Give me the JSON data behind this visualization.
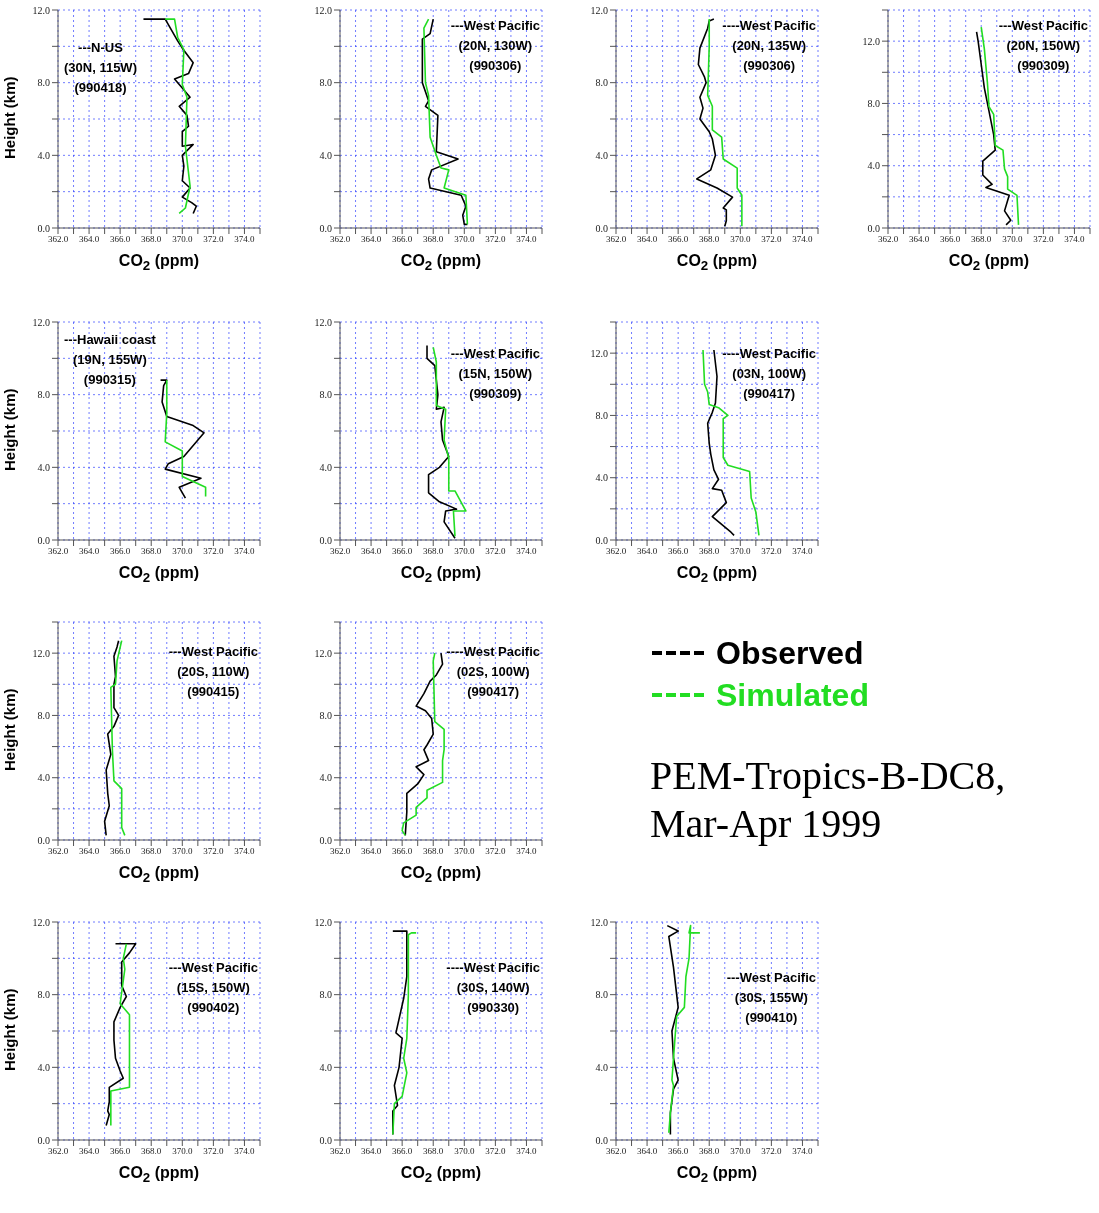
{
  "chart_data": [
    {
      "type": "line",
      "xlabel": "CO$_{2}$ (ppm)",
      "ylabel": "Height (km)",
      "annotations": [
        "---N-US",
        "(30N, 115W)",
        "(990418)"
      ],
      "xlim": [
        362,
        375
      ],
      "xticks": [
        {
          "value": 362,
          "label": "362.0"
        },
        {
          "value": 363,
          "label": null
        },
        {
          "value": 364,
          "label": "364.0"
        },
        {
          "value": 365,
          "label": null
        },
        {
          "value": 366,
          "label": "366.0"
        },
        {
          "value": 367,
          "label": null
        },
        {
          "value": 368,
          "label": "368.0"
        },
        {
          "value": 369,
          "label": null
        },
        {
          "value": 370,
          "label": "370.0"
        },
        {
          "value": 371,
          "label": null
        },
        {
          "value": 372,
          "label": "372.0"
        },
        {
          "value": 373,
          "label": null
        },
        {
          "value": 374,
          "label": "374.0"
        },
        {
          "value": 375,
          "label": null
        }
      ],
      "ylim": [
        0,
        12
      ],
      "yticks": [
        {
          "value": 0,
          "label": "0.0"
        },
        {
          "value": 2,
          "label": null
        },
        {
          "value": 4,
          "label": "4.0"
        },
        {
          "value": 6,
          "label": null
        },
        {
          "value": 8,
          "label": "8.0"
        },
        {
          "value": 10,
          "label": null
        },
        {
          "value": 12,
          "label": "12.0"
        }
      ],
      "grid": true,
      "series": [
        {
          "color": "#000000",
          "x": [
            367.5,
            368.9,
            369.7,
            370.0,
            370.7,
            370.4,
            369.5,
            369.9,
            370.5,
            369.8,
            370.3,
            370.4,
            370.0,
            370.0,
            370.7,
            370.0,
            370.1,
            370.0,
            370.5,
            370.0,
            370.6,
            370.9,
            370.7
          ],
          "values": [
            11.5,
            11.5,
            10.3,
            9.9,
            9.1,
            8.5,
            8.2,
            7.8,
            7.2,
            6.7,
            6.2,
            5.6,
            5.3,
            4.5,
            4.6,
            4.0,
            3.4,
            2.6,
            2.2,
            1.7,
            1.4,
            1.2,
            0.8
          ]
        },
        {
          "color": "#22dd22",
          "x": [
            368.9,
            369.5,
            369.7,
            370.1,
            370.0,
            370.3,
            370.2,
            370.5,
            370.2,
            369.8
          ],
          "values": [
            11.5,
            11.5,
            10.5,
            9.8,
            7.9,
            7.2,
            4.5,
            2.3,
            1.1,
            0.8
          ]
        }
      ]
    },
    {
      "type": "line",
      "xlabel": "CO$_{2}$ (ppm)",
      "annotations": [
        "---West Pacific",
        "(20N, 130W)",
        "(990306)"
      ],
      "xlim": [
        362,
        375
      ],
      "xticks": [
        {
          "value": 362,
          "label": "362.0"
        },
        {
          "value": 363,
          "label": null
        },
        {
          "value": 364,
          "label": "364.0"
        },
        {
          "value": 365,
          "label": null
        },
        {
          "value": 366,
          "label": "366.0"
        },
        {
          "value": 367,
          "label": null
        },
        {
          "value": 368,
          "label": "368.0"
        },
        {
          "value": 369,
          "label": null
        },
        {
          "value": 370,
          "label": "370.0"
        },
        {
          "value": 371,
          "label": null
        },
        {
          "value": 372,
          "label": "372.0"
        },
        {
          "value": 373,
          "label": null
        },
        {
          "value": 374,
          "label": "374.0"
        },
        {
          "value": 375,
          "label": null
        }
      ],
      "ylim": [
        0,
        12
      ],
      "yticks": [
        {
          "value": 0,
          "label": "0.0"
        },
        {
          "value": 2,
          "label": null
        },
        {
          "value": 4,
          "label": "4.0"
        },
        {
          "value": 6,
          "label": null
        },
        {
          "value": 8,
          "label": "8.0"
        },
        {
          "value": 10,
          "label": null
        },
        {
          "value": 12,
          "label": "12.0"
        }
      ],
      "grid": true,
      "series": [
        {
          "color": "#000000",
          "x": [
            368.0,
            367.8,
            367.3,
            367.3,
            367.7,
            367.5,
            368.3,
            368.2,
            369.6,
            367.9,
            367.7,
            367.8,
            369.8,
            370.1,
            369.9,
            370.0,
            370.2
          ],
          "values": [
            11.5,
            10.7,
            10.4,
            8.0,
            7.0,
            6.7,
            6.2,
            4.2,
            3.8,
            3.2,
            2.7,
            2.2,
            1.8,
            1.2,
            0.7,
            0.2,
            0.2
          ]
        },
        {
          "color": "#22dd22",
          "x": [
            367.7,
            367.4,
            367.5,
            367.7,
            367.8,
            368.2,
            368.5,
            369.0,
            368.7,
            370.1,
            370.2
          ],
          "values": [
            11.5,
            11.0,
            8.0,
            7.3,
            5.0,
            4.0,
            3.3,
            3.2,
            2.2,
            1.8,
            0.2
          ]
        }
      ]
    },
    {
      "type": "line",
      "xlabel": "CO$_{2}$ (ppm)",
      "annotations": [
        "----West Pacific",
        "(20N, 135W)",
        "(990306)"
      ],
      "xlim": [
        362,
        375
      ],
      "xticks": [
        {
          "value": 362,
          "label": "362.0"
        },
        {
          "value": 363,
          "label": null
        },
        {
          "value": 364,
          "label": "364.0"
        },
        {
          "value": 365,
          "label": null
        },
        {
          "value": 366,
          "label": "366.0"
        },
        {
          "value": 367,
          "label": null
        },
        {
          "value": 368,
          "label": "368.0"
        },
        {
          "value": 369,
          "label": null
        },
        {
          "value": 370,
          "label": "370.0"
        },
        {
          "value": 371,
          "label": null
        },
        {
          "value": 372,
          "label": "372.0"
        },
        {
          "value": 373,
          "label": null
        },
        {
          "value": 374,
          "label": "374.0"
        },
        {
          "value": 375,
          "label": null
        }
      ],
      "ylim": [
        0,
        12
      ],
      "yticks": [
        {
          "value": 0,
          "label": "0.0"
        },
        {
          "value": 2,
          "label": null
        },
        {
          "value": 4,
          "label": "4.0"
        },
        {
          "value": 6,
          "label": null
        },
        {
          "value": 8,
          "label": "8.0"
        },
        {
          "value": 10,
          "label": null
        },
        {
          "value": 12,
          "label": "12.0"
        }
      ],
      "grid": true,
      "series": [
        {
          "color": "#000000",
          "x": [
            368.3,
            368.0,
            367.9,
            367.4,
            367.3,
            367.7,
            367.8,
            367.4,
            367.6,
            367.4,
            368.0,
            368.2,
            368.4,
            368.1,
            367.2,
            368.5,
            369.5,
            368.9,
            369.1,
            369.1,
            369.0
          ],
          "values": [
            11.5,
            11.4,
            11.0,
            9.9,
            9.0,
            8.3,
            8.0,
            7.2,
            6.6,
            6.0,
            5.3,
            4.9,
            4.0,
            3.2,
            2.7,
            2.2,
            1.7,
            1.1,
            1.0,
            0.4,
            0.1
          ]
        },
        {
          "color": "#22dd22",
          "x": [
            368.0,
            368.0,
            367.9,
            368.2,
            368.2,
            368.8,
            368.9,
            369.8,
            369.8,
            370.1,
            370.1
          ],
          "values": [
            11.5,
            10.0,
            7.3,
            6.7,
            5.4,
            5.0,
            3.8,
            3.3,
            2.2,
            1.8,
            0.1
          ]
        }
      ]
    },
    {
      "type": "line",
      "xlabel": "CO$_{2}$ (ppm)",
      "annotations": [
        "---West Pacific",
        "(20N, 150W)",
        "(990309)"
      ],
      "xlim": [
        362,
        375
      ],
      "xticks": [
        {
          "value": 362,
          "label": "362.0"
        },
        {
          "value": 363,
          "label": null
        },
        {
          "value": 364,
          "label": "364.0"
        },
        {
          "value": 365,
          "label": null
        },
        {
          "value": 366,
          "label": "366.0"
        },
        {
          "value": 367,
          "label": null
        },
        {
          "value": 368,
          "label": "368.0"
        },
        {
          "value": 369,
          "label": null
        },
        {
          "value": 370,
          "label": "370.0"
        },
        {
          "value": 371,
          "label": null
        },
        {
          "value": 372,
          "label": "372.0"
        },
        {
          "value": 373,
          "label": null
        },
        {
          "value": 374,
          "label": "374.0"
        },
        {
          "value": 375,
          "label": null
        }
      ],
      "ylim": [
        0,
        14
      ],
      "yticks": [
        {
          "value": 0,
          "label": "0.0"
        },
        {
          "value": 2,
          "label": null
        },
        {
          "value": 4,
          "label": "4.0"
        },
        {
          "value": 6,
          "label": null
        },
        {
          "value": 8,
          "label": "8.0"
        },
        {
          "value": 10,
          "label": null
        },
        {
          "value": 12,
          "label": "12.0"
        },
        {
          "value": 14,
          "label": null
        }
      ],
      "grid": true,
      "series": [
        {
          "color": "#000000",
          "x": [
            367.7,
            367.8,
            368.0,
            368.2,
            368.5,
            368.8,
            368.9,
            368.1,
            368.1,
            368.7,
            368.3,
            369.8,
            369.5,
            369.9,
            369.6
          ],
          "values": [
            12.6,
            12.0,
            10.5,
            9.0,
            7.5,
            6.0,
            5.0,
            4.3,
            3.4,
            2.8,
            2.6,
            2.1,
            1.1,
            0.5,
            0.2
          ]
        },
        {
          "color": "#22dd22",
          "x": [
            368.0,
            368.2,
            368.4,
            368.5,
            368.8,
            368.9,
            369.4,
            369.5,
            369.7,
            369.7,
            370.3,
            370.4
          ],
          "values": [
            12.9,
            11.5,
            9.3,
            7.8,
            7.3,
            5.3,
            5.0,
            3.8,
            3.3,
            2.5,
            2.1,
            0.2
          ]
        }
      ]
    },
    {
      "type": "line",
      "xlabel": "CO$_{2}$ (ppm)",
      "ylabel": "Height (km)",
      "annotations": [
        "---Hawaii coast",
        "(19N, 155W)",
        "(990315)"
      ],
      "xlim": [
        362,
        375
      ],
      "xticks": [
        {
          "value": 362,
          "label": "362.0"
        },
        {
          "value": 363,
          "label": null
        },
        {
          "value": 364,
          "label": "364.0"
        },
        {
          "value": 365,
          "label": null
        },
        {
          "value": 366,
          "label": "366.0"
        },
        {
          "value": 367,
          "label": null
        },
        {
          "value": 368,
          "label": "368.0"
        },
        {
          "value": 369,
          "label": null
        },
        {
          "value": 370,
          "label": "370.0"
        },
        {
          "value": 371,
          "label": null
        },
        {
          "value": 372,
          "label": "372.0"
        },
        {
          "value": 373,
          "label": null
        },
        {
          "value": 374,
          "label": "374.0"
        },
        {
          "value": 375,
          "label": null
        }
      ],
      "ylim": [
        0,
        12
      ],
      "yticks": [
        {
          "value": 0,
          "label": "0.0"
        },
        {
          "value": 2,
          "label": null
        },
        {
          "value": 4,
          "label": "4.0"
        },
        {
          "value": 6,
          "label": null
        },
        {
          "value": 8,
          "label": "8.0"
        },
        {
          "value": 10,
          "label": null
        },
        {
          "value": 12,
          "label": "12.0"
        }
      ],
      "grid": true,
      "series": [
        {
          "color": "#000000",
          "x": [
            368.6,
            369.0,
            368.8,
            368.7,
            369.0,
            370.7,
            371.4,
            370.1,
            369.1,
            368.9,
            371.2,
            369.8,
            370.2
          ],
          "values": [
            8.8,
            8.8,
            8.5,
            7.6,
            6.8,
            6.3,
            5.9,
            4.6,
            4.2,
            3.9,
            3.4,
            2.9,
            2.3
          ]
        },
        {
          "color": "#22dd22",
          "x": [
            369.0,
            369.0,
            368.9,
            370.0,
            370.0,
            371.5,
            371.5
          ],
          "values": [
            8.8,
            7.0,
            5.4,
            4.9,
            3.5,
            2.9,
            2.4
          ]
        }
      ]
    },
    {
      "type": "line",
      "xlabel": "CO$_{2}$ (ppm)",
      "annotations": [
        "---West Pacific",
        "(15N, 150W)",
        "(990309)"
      ],
      "xlim": [
        362,
        375
      ],
      "xticks": [
        {
          "value": 362,
          "label": "362.0"
        },
        {
          "value": 363,
          "label": null
        },
        {
          "value": 364,
          "label": "364.0"
        },
        {
          "value": 365,
          "label": null
        },
        {
          "value": 366,
          "label": "366.0"
        },
        {
          "value": 367,
          "label": null
        },
        {
          "value": 368,
          "label": "368.0"
        },
        {
          "value": 369,
          "label": null
        },
        {
          "value": 370,
          "label": "370.0"
        },
        {
          "value": 371,
          "label": null
        },
        {
          "value": 372,
          "label": "372.0"
        },
        {
          "value": 373,
          "label": null
        },
        {
          "value": 374,
          "label": "374.0"
        },
        {
          "value": 375,
          "label": null
        }
      ],
      "ylim": [
        0,
        12
      ],
      "yticks": [
        {
          "value": 0,
          "label": "0.0"
        },
        {
          "value": 2,
          "label": null
        },
        {
          "value": 4,
          "label": "4.0"
        },
        {
          "value": 6,
          "label": null
        },
        {
          "value": 8,
          "label": "8.0"
        },
        {
          "value": 10,
          "label": null
        },
        {
          "value": 12,
          "label": "12.0"
        }
      ],
      "grid": true,
      "series": [
        {
          "color": "#000000",
          "x": [
            367.6,
            367.6,
            368.1,
            368.3,
            368.2,
            368.7,
            368.5,
            368.6,
            369.0,
            368.4,
            367.7,
            367.7,
            368.4,
            369.5,
            368.8,
            368.7,
            369.4
          ],
          "values": [
            10.7,
            10.0,
            9.6,
            8.0,
            7.2,
            7.3,
            6.5,
            5.5,
            4.6,
            4.0,
            3.6,
            2.6,
            2.1,
            1.7,
            1.6,
            1.0,
            0.1
          ]
        },
        {
          "color": "#22dd22",
          "x": [
            368.0,
            368.2,
            368.2,
            368.8,
            368.7,
            369.0,
            369.0,
            369.4,
            370.1,
            369.3,
            369.4
          ],
          "values": [
            10.6,
            9.8,
            7.4,
            7.2,
            5.5,
            4.5,
            2.7,
            2.7,
            1.6,
            1.6,
            0.2
          ]
        }
      ]
    },
    {
      "type": "line",
      "xlabel": "CO$_{2}$ (ppm)",
      "annotations": [
        "----West Pacific",
        "(03N, 100W)",
        "(990417)"
      ],
      "xlim": [
        362,
        375
      ],
      "xticks": [
        {
          "value": 362,
          "label": "362.0"
        },
        {
          "value": 363,
          "label": null
        },
        {
          "value": 364,
          "label": "364.0"
        },
        {
          "value": 365,
          "label": null
        },
        {
          "value": 366,
          "label": "366.0"
        },
        {
          "value": 367,
          "label": null
        },
        {
          "value": 368,
          "label": "368.0"
        },
        {
          "value": 369,
          "label": null
        },
        {
          "value": 370,
          "label": "370.0"
        },
        {
          "value": 371,
          "label": null
        },
        {
          "value": 372,
          "label": "372.0"
        },
        {
          "value": 373,
          "label": null
        },
        {
          "value": 374,
          "label": "374.0"
        },
        {
          "value": 375,
          "label": null
        }
      ],
      "ylim": [
        0,
        14
      ],
      "yticks": [
        {
          "value": 0,
          "label": "0.0"
        },
        {
          "value": 2,
          "label": null
        },
        {
          "value": 4,
          "label": "4.0"
        },
        {
          "value": 6,
          "label": null
        },
        {
          "value": 8,
          "label": "8.0"
        },
        {
          "value": 10,
          "label": null
        },
        {
          "value": 12,
          "label": "12.0"
        },
        {
          "value": 14,
          "label": null
        }
      ],
      "grid": true,
      "series": [
        {
          "color": "#000000",
          "x": [
            368.3,
            368.5,
            368.4,
            368.2,
            367.9,
            368.0,
            368.1,
            368.3,
            368.6,
            368.2,
            368.8,
            369.1,
            368.2,
            369.4,
            369.6
          ],
          "values": [
            12.2,
            10.5,
            8.8,
            8.2,
            7.5,
            6.2,
            5.5,
            4.5,
            3.9,
            3.3,
            3.2,
            2.4,
            1.5,
            0.5,
            0.3
          ]
        },
        {
          "color": "#22dd22",
          "x": [
            367.6,
            367.7,
            367.9,
            368.0,
            368.6,
            369.2,
            368.9,
            368.9,
            369.2,
            370.6,
            370.7,
            371.0,
            371.2
          ],
          "values": [
            12.2,
            10.0,
            9.5,
            8.7,
            8.5,
            8.0,
            7.8,
            5.3,
            4.8,
            4.4,
            2.7,
            1.8,
            0.3
          ]
        }
      ]
    },
    {
      "type": "line",
      "xlabel": "CO$_{2}$ (ppm)",
      "ylabel": "Height (km)",
      "annotations": [
        "---West Pacific",
        "(20S, 110W)",
        "(990415)"
      ],
      "xlim": [
        362,
        375
      ],
      "xticks": [
        {
          "value": 362,
          "label": "362.0"
        },
        {
          "value": 363,
          "label": null
        },
        {
          "value": 364,
          "label": "364.0"
        },
        {
          "value": 365,
          "label": null
        },
        {
          "value": 366,
          "label": "366.0"
        },
        {
          "value": 367,
          "label": null
        },
        {
          "value": 368,
          "label": "368.0"
        },
        {
          "value": 369,
          "label": null
        },
        {
          "value": 370,
          "label": "370.0"
        },
        {
          "value": 371,
          "label": null
        },
        {
          "value": 372,
          "label": "372.0"
        },
        {
          "value": 373,
          "label": null
        },
        {
          "value": 374,
          "label": "374.0"
        },
        {
          "value": 375,
          "label": null
        }
      ],
      "ylim": [
        0,
        14
      ],
      "yticks": [
        {
          "value": 0,
          "label": "0.0"
        },
        {
          "value": 2,
          "label": null
        },
        {
          "value": 4,
          "label": "4.0"
        },
        {
          "value": 6,
          "label": null
        },
        {
          "value": 8,
          "label": "8.0"
        },
        {
          "value": 10,
          "label": null
        },
        {
          "value": 12,
          "label": "12.0"
        },
        {
          "value": 14,
          "label": null
        }
      ],
      "grid": true,
      "series": [
        {
          "color": "#000000",
          "x": [
            365.9,
            365.8,
            365.6,
            365.7,
            365.6,
            365.6,
            365.9,
            365.6,
            365.2,
            365.4,
            365.1,
            365.2,
            365.3,
            365.0,
            365.1
          ],
          "values": [
            12.8,
            12.4,
            11.8,
            10.5,
            10.0,
            8.5,
            8.0,
            7.3,
            6.8,
            5.5,
            4.5,
            3.0,
            2.2,
            1.2,
            0.3
          ]
        },
        {
          "color": "#22dd22",
          "x": [
            366.1,
            365.8,
            365.7,
            365.4,
            365.5,
            365.6,
            366.1,
            366.1,
            366.3
          ],
          "values": [
            12.8,
            11.5,
            10.0,
            9.8,
            5.8,
            3.8,
            3.3,
            0.8,
            0.3
          ]
        }
      ]
    },
    {
      "type": "line",
      "xlabel": "CO$_{2}$ (ppm)",
      "annotations": [
        "----West Pacific",
        "(02S, 100W)",
        "(990417)"
      ],
      "xlim": [
        362,
        375
      ],
      "xticks": [
        {
          "value": 362,
          "label": "362.0"
        },
        {
          "value": 363,
          "label": null
        },
        {
          "value": 364,
          "label": "364.0"
        },
        {
          "value": 365,
          "label": null
        },
        {
          "value": 366,
          "label": "366.0"
        },
        {
          "value": 367,
          "label": null
        },
        {
          "value": 368,
          "label": "368.0"
        },
        {
          "value": 369,
          "label": null
        },
        {
          "value": 370,
          "label": "370.0"
        },
        {
          "value": 371,
          "label": null
        },
        {
          "value": 372,
          "label": "372.0"
        },
        {
          "value": 373,
          "label": null
        },
        {
          "value": 374,
          "label": "374.0"
        },
        {
          "value": 375,
          "label": null
        }
      ],
      "ylim": [
        0,
        14
      ],
      "yticks": [
        {
          "value": 0,
          "label": "0.0"
        },
        {
          "value": 2,
          "label": null
        },
        {
          "value": 4,
          "label": "4.0"
        },
        {
          "value": 6,
          "label": null
        },
        {
          "value": 8,
          "label": "8.0"
        },
        {
          "value": 10,
          "label": null
        },
        {
          "value": 12,
          "label": "12.0"
        },
        {
          "value": 14,
          "label": null
        }
      ],
      "grid": true,
      "legend": "right",
      "series": [
        {
          "name": "Observed",
          "color": "#000000",
          "x": [
            368.5,
            368.6,
            368.2,
            367.8,
            367.4,
            366.9,
            367.5,
            367.9,
            368.0,
            367.6,
            367.4,
            367.7,
            366.9,
            367.4,
            367.0,
            366.3,
            366.3,
            366.2
          ],
          "values": [
            12.0,
            11.3,
            10.6,
            10.2,
            9.4,
            8.6,
            8.3,
            7.8,
            6.8,
            6.1,
            5.8,
            5.1,
            4.7,
            4.2,
            3.6,
            3.0,
            1.8,
            0.3
          ]
        },
        {
          "name": "Simulated",
          "color": "#22dd22",
          "x": [
            368.1,
            368.0,
            368.1,
            368.7,
            368.7,
            368.6,
            368.6,
            367.6,
            367.6,
            366.9,
            366.9,
            366.1,
            366.0,
            366.2
          ],
          "values": [
            12.0,
            11.5,
            7.6,
            7.1,
            5.8,
            5.1,
            3.7,
            3.2,
            2.7,
            2.1,
            1.6,
            1.1,
            0.6,
            0.3
          ]
        }
      ]
    },
    {
      "type": "line",
      "xlabel": "CO$_{2}$ (ppm)",
      "ylabel": "Height (km)",
      "annotations": [
        "---West Pacific",
        "(15S, 150W)",
        "(990402)"
      ],
      "xlim": [
        362,
        375
      ],
      "xticks": [
        {
          "value": 362,
          "label": "362.0"
        },
        {
          "value": 363,
          "label": null
        },
        {
          "value": 364,
          "label": "364.0"
        },
        {
          "value": 365,
          "label": null
        },
        {
          "value": 366,
          "label": "366.0"
        },
        {
          "value": 367,
          "label": null
        },
        {
          "value": 368,
          "label": "368.0"
        },
        {
          "value": 369,
          "label": null
        },
        {
          "value": 370,
          "label": "370.0"
        },
        {
          "value": 371,
          "label": null
        },
        {
          "value": 372,
          "label": "372.0"
        },
        {
          "value": 373,
          "label": null
        },
        {
          "value": 374,
          "label": "374.0"
        },
        {
          "value": 375,
          "label": null
        }
      ],
      "ylim": [
        0,
        12
      ],
      "yticks": [
        {
          "value": 0,
          "label": "0.0"
        },
        {
          "value": 2,
          "label": null
        },
        {
          "value": 4,
          "label": "4.0"
        },
        {
          "value": 6,
          "label": null
        },
        {
          "value": 8,
          "label": "8.0"
        },
        {
          "value": 10,
          "label": null
        },
        {
          "value": 12,
          "label": "12.0"
        }
      ],
      "grid": true,
      "series": [
        {
          "color": "#000000",
          "x": [
            365.7,
            367.0,
            366.6,
            366.1,
            366.1,
            366.4,
            366.0,
            365.6,
            365.6,
            365.7,
            366.0,
            366.2,
            365.3,
            365.3,
            365.2,
            365.3,
            365.1
          ],
          "values": [
            10.8,
            10.8,
            10.3,
            9.8,
            8.5,
            7.9,
            7.3,
            6.5,
            5.5,
            4.5,
            3.8,
            3.4,
            2.9,
            2.1,
            1.6,
            1.4,
            0.8
          ]
        },
        {
          "color": "#22dd22",
          "x": [
            366.4,
            366.2,
            366.3,
            366.0,
            366.6,
            366.6,
            365.4,
            365.4
          ],
          "values": [
            10.8,
            10.0,
            9.4,
            7.5,
            6.9,
            2.9,
            2.7,
            0.8
          ]
        }
      ]
    },
    {
      "type": "line",
      "xlabel": "CO$_{2}$ (ppm)",
      "annotations": [
        "----West Pacific",
        "(30S, 140W)",
        "(990330)"
      ],
      "xlim": [
        362,
        375
      ],
      "xticks": [
        {
          "value": 362,
          "label": "362.0"
        },
        {
          "value": 363,
          "label": null
        },
        {
          "value": 364,
          "label": "364.0"
        },
        {
          "value": 365,
          "label": null
        },
        {
          "value": 366,
          "label": "366.0"
        },
        {
          "value": 367,
          "label": null
        },
        {
          "value": 368,
          "label": "368.0"
        },
        {
          "value": 369,
          "label": null
        },
        {
          "value": 370,
          "label": "370.0"
        },
        {
          "value": 371,
          "label": null
        },
        {
          "value": 372,
          "label": "372.0"
        },
        {
          "value": 373,
          "label": null
        },
        {
          "value": 374,
          "label": "374.0"
        },
        {
          "value": 375,
          "label": null
        }
      ],
      "ylim": [
        0,
        12
      ],
      "yticks": [
        {
          "value": 0,
          "label": "0.0"
        },
        {
          "value": 2,
          "label": null
        },
        {
          "value": 4,
          "label": "4.0"
        },
        {
          "value": 6,
          "label": null
        },
        {
          "value": 8,
          "label": "8.0"
        },
        {
          "value": 10,
          "label": null
        },
        {
          "value": 12,
          "label": "12.0"
        }
      ],
      "grid": true,
      "series": [
        {
          "color": "#000000",
          "x": [
            365.4,
            366.3,
            366.3,
            366.1,
            365.6,
            366.0,
            365.8,
            365.5,
            365.7,
            365.4,
            365.4
          ],
          "values": [
            11.5,
            11.5,
            9.0,
            7.8,
            5.9,
            5.6,
            4.0,
            3.0,
            1.9,
            1.6,
            0.3
          ]
        },
        {
          "color": "#22dd22",
          "x": [
            366.9,
            366.6,
            366.4,
            366.4,
            366.3,
            366.1,
            366.3,
            366.0,
            365.5,
            365.4
          ],
          "values": [
            11.4,
            11.4,
            11.3,
            8.0,
            5.6,
            4.5,
            3.7,
            2.4,
            2.0,
            0.3
          ]
        }
      ]
    },
    {
      "type": "line",
      "xlabel": "CO$_{2}$ (ppm)",
      "annotations": [
        "---West Pacific",
        "(30S, 155W)",
        "(990410)"
      ],
      "xlim": [
        362,
        375
      ],
      "xticks": [
        {
          "value": 362,
          "label": "362.0"
        },
        {
          "value": 363,
          "label": null
        },
        {
          "value": 364,
          "label": "364.0"
        },
        {
          "value": 365,
          "label": null
        },
        {
          "value": 366,
          "label": "366.0"
        },
        {
          "value": 367,
          "label": null
        },
        {
          "value": 368,
          "label": "368.0"
        },
        {
          "value": 369,
          "label": null
        },
        {
          "value": 370,
          "label": "370.0"
        },
        {
          "value": 371,
          "label": null
        },
        {
          "value": 372,
          "label": "372.0"
        },
        {
          "value": 373,
          "label": null
        },
        {
          "value": 374,
          "label": "374.0"
        },
        {
          "value": 375,
          "label": null
        }
      ],
      "ylim": [
        0,
        12
      ],
      "yticks": [
        {
          "value": 0,
          "label": "0.0"
        },
        {
          "value": 2,
          "label": null
        },
        {
          "value": 4,
          "label": "4.0"
        },
        {
          "value": 6,
          "label": null
        },
        {
          "value": 8,
          "label": "8.0"
        },
        {
          "value": 10,
          "label": null
        },
        {
          "value": 12,
          "label": "12.0"
        }
      ],
      "grid": true,
      "series": [
        {
          "color": "#000000",
          "x": [
            365.3,
            366.0,
            365.4,
            365.7,
            366.0,
            365.6,
            365.7,
            366.0,
            365.7,
            365.5,
            365.5
          ],
          "values": [
            11.8,
            11.5,
            11.2,
            9.5,
            7.3,
            6.0,
            4.5,
            3.3,
            2.8,
            1.5,
            0.3
          ]
        },
        {
          "color": "#22dd22",
          "x": [
            367.4,
            366.7,
            366.8,
            366.7,
            366.5,
            366.4,
            365.9,
            365.7,
            365.6,
            365.7,
            365.5,
            365.4
          ],
          "values": [
            11.4,
            11.4,
            11.8,
            10.0,
            9.0,
            7.3,
            6.8,
            4.5,
            3.3,
            3.0,
            1.5,
            0.4
          ]
        }
      ]
    },
    {
      "type": "other",
      "annotations": [
        "PEM-Tropics-B-DC8, Mar-Apr 1999"
      ]
    }
  ]
}
